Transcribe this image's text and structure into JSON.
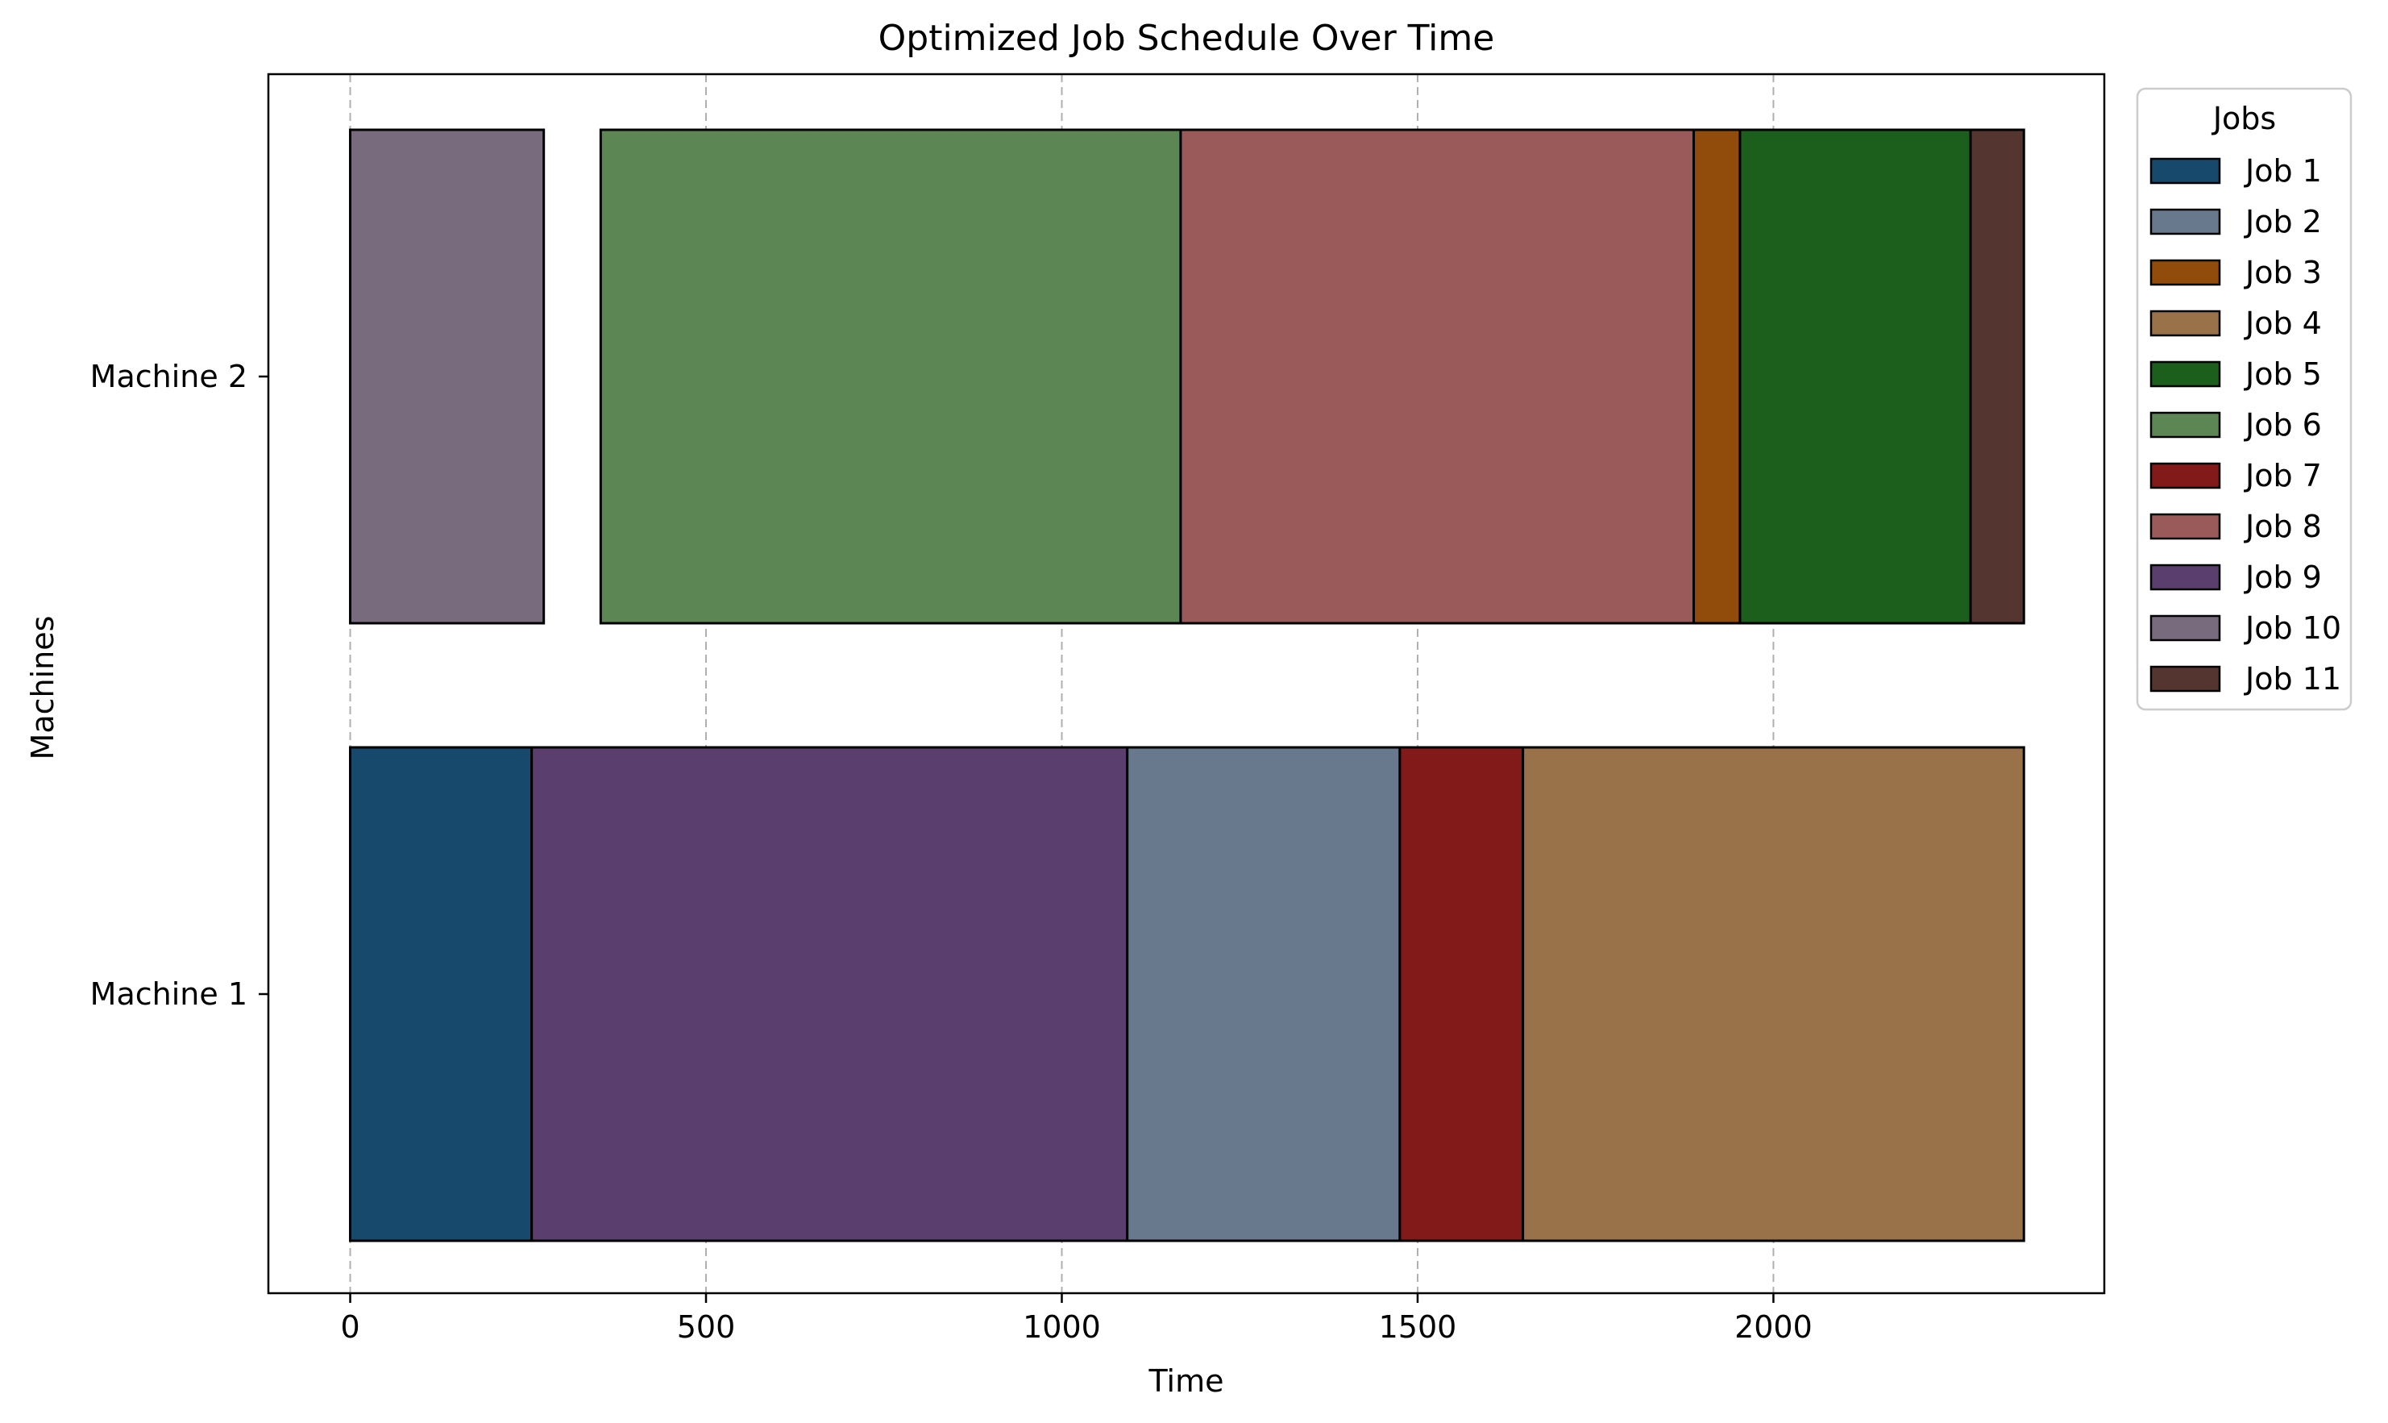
{
  "chart_data": {
    "type": "gantt",
    "title": "Optimized Job Schedule Over Time",
    "xlabel": "Time",
    "ylabel": "Machines",
    "xlim": [
      -115,
      2465
    ],
    "xticks": [
      0,
      500,
      1000,
      1500,
      2000
    ],
    "xtick_labels": [
      "0",
      "500",
      "1000",
      "1500",
      "2000"
    ],
    "grid": "x dashed",
    "machines": [
      "Machine 1",
      "Machine 2"
    ],
    "legend": {
      "title": "Jobs",
      "placement": "outside upper right",
      "entries": [
        {
          "label": "Job 1",
          "color": "#17496c"
        },
        {
          "label": "Job 2",
          "color": "#68788d"
        },
        {
          "label": "Job 3",
          "color": "#914b0b"
        },
        {
          "label": "Job 4",
          "color": "#9a7249"
        },
        {
          "label": "Job 5",
          "color": "#1c5e1c"
        },
        {
          "label": "Job 6",
          "color": "#5d8655"
        },
        {
          "label": "Job 7",
          "color": "#821a1a"
        },
        {
          "label": "Job 8",
          "color": "#9a5a5a"
        },
        {
          "label": "Job 9",
          "color": "#5a3f6e"
        },
        {
          "label": "Job 10",
          "color": "#796b7e"
        },
        {
          "label": "Job 11",
          "color": "#55352f"
        }
      ]
    },
    "tasks": [
      {
        "machine": "Machine 1",
        "job": "Job 1",
        "start": 0,
        "end": 255
      },
      {
        "machine": "Machine 1",
        "job": "Job 9",
        "start": 255,
        "end": 1092
      },
      {
        "machine": "Machine 1",
        "job": "Job 2",
        "start": 1092,
        "end": 1475
      },
      {
        "machine": "Machine 1",
        "job": "Job 7",
        "start": 1475,
        "end": 1648
      },
      {
        "machine": "Machine 1",
        "job": "Job 4",
        "start": 1648,
        "end": 2352
      },
      {
        "machine": "Machine 2",
        "job": "Job 10",
        "start": 0,
        "end": 272
      },
      {
        "machine": "Machine 2",
        "job": "Job 6",
        "start": 352,
        "end": 1167
      },
      {
        "machine": "Machine 2",
        "job": "Job 8",
        "start": 1167,
        "end": 1888
      },
      {
        "machine": "Machine 2",
        "job": "Job 3",
        "start": 1888,
        "end": 1953
      },
      {
        "machine": "Machine 2",
        "job": "Job 5",
        "start": 1953,
        "end": 2277
      },
      {
        "machine": "Machine 2",
        "job": "Job 11",
        "start": 2277,
        "end": 2352
      }
    ]
  }
}
